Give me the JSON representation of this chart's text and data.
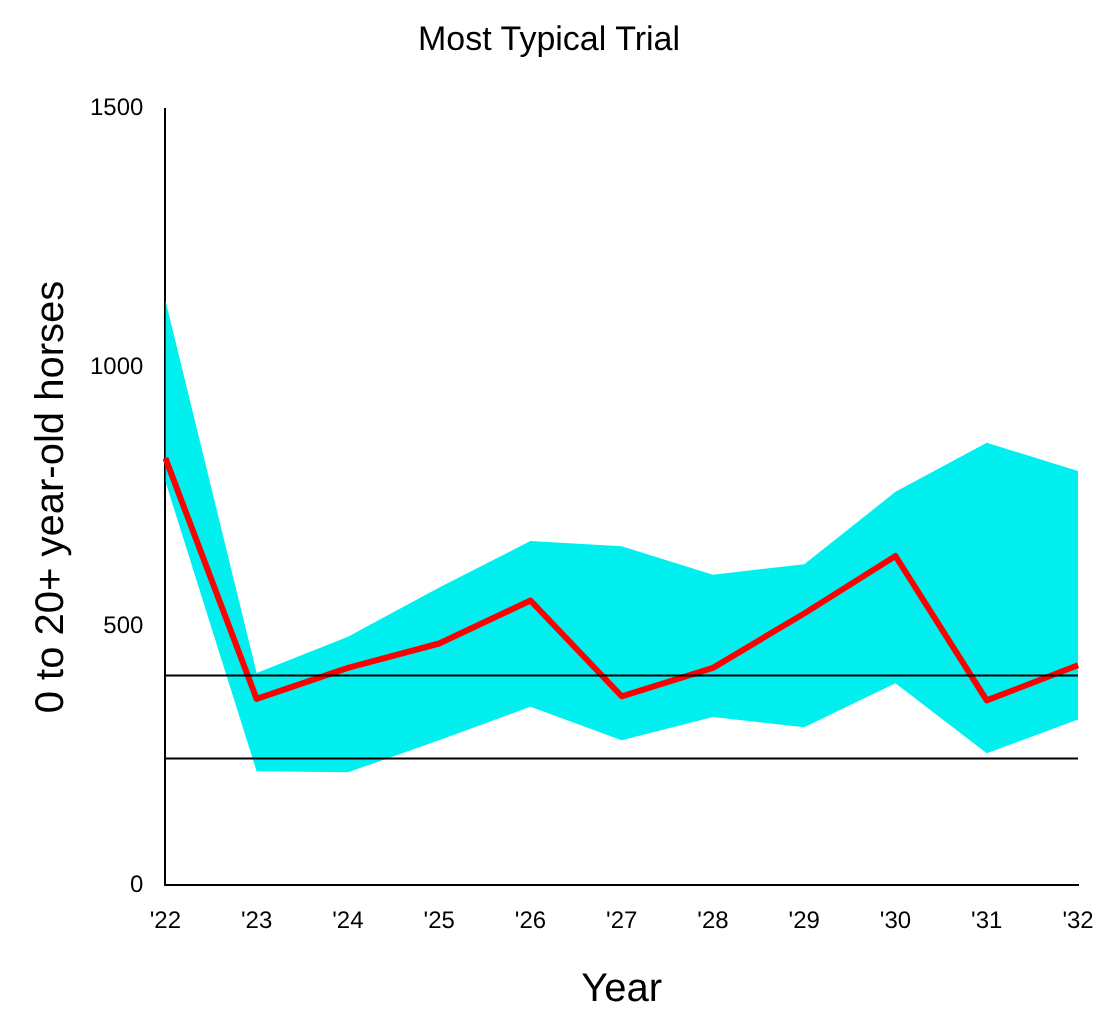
{
  "chart_data": {
    "type": "line",
    "title": "Most Typical Trial",
    "xlabel": "Year",
    "ylabel": "0 to 20+ year-old horses",
    "categories": [
      "'22",
      "'23",
      "'24",
      "'25",
      "'26",
      "'27",
      "'28",
      "'29",
      "'30",
      "'31",
      "'32"
    ],
    "series": [
      {
        "color": "#ff0000",
        "values": [
          825,
          360,
          420,
          467,
          550,
          365,
          420,
          525,
          636,
          357,
          425
        ],
        "lower": [
          780,
          220,
          218,
          280,
          345,
          280,
          325,
          305,
          390,
          255,
          320
        ],
        "upper": [
          1130,
          410,
          480,
          575,
          665,
          655,
          600,
          620,
          760,
          855,
          800
        ]
      }
    ],
    "ylim": [
      0,
      1500
    ],
    "yticks": [
      0,
      500,
      1000,
      1500
    ],
    "ref_lines": [
      {
        "axis": "y",
        "value": 405,
        "color": "#000000"
      },
      {
        "axis": "y",
        "value": 245,
        "color": "#000000"
      }
    ],
    "grid": false,
    "legend": false,
    "marker": "none",
    "line_style": "solid"
  }
}
